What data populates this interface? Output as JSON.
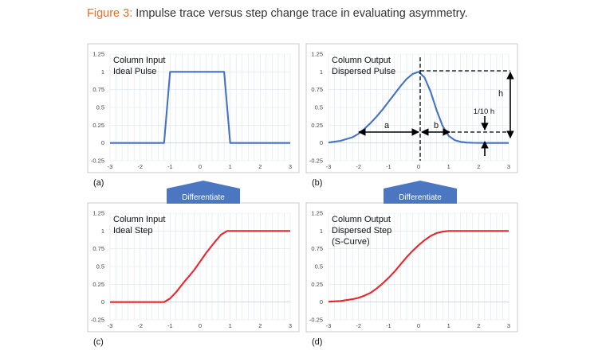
{
  "caption": {
    "figure_label": "Figure 3:",
    "text": "Impulse trace versus step change trace in evaluating asymmetry."
  },
  "colors": {
    "pulse_line": "#4472c4",
    "step_line": "#e8262b",
    "arrow_fill": "#4a76c2",
    "caption_accent": "#e0702e",
    "grid": "#d9e5f2",
    "panel_border": "#bfbfbf"
  },
  "arrows": {
    "left": "Differentiate",
    "right": "Differentiate"
  },
  "annotations": {
    "a": "a",
    "b": "b",
    "h": "h",
    "tenth_h": "1/10 h"
  },
  "chart_data": [
    {
      "type": "line",
      "panel_label": "(a)",
      "title_lines": [
        "Column Input",
        "Ideal Pulse"
      ],
      "xlim": [
        -3,
        3
      ],
      "ylim": [
        -0.25,
        1.25
      ],
      "x_ticks": [
        "-3",
        "-2",
        "-1",
        "0",
        "1",
        "2",
        "3"
      ],
      "y_ticks": [
        "-0.25",
        "0",
        "0.25",
        "0.5",
        "0.75",
        "1",
        "1.25"
      ],
      "grid": true,
      "series": [
        {
          "color": "#4472c4",
          "x": [
            -3,
            -1.2,
            -1.0,
            0.8,
            1.0,
            3
          ],
          "y": [
            0,
            0,
            1,
            1,
            0,
            0
          ]
        }
      ]
    },
    {
      "type": "line",
      "panel_label": "(b)",
      "title_lines": [
        "Column Output",
        "Dispersed Pulse"
      ],
      "xlim": [
        -3,
        3
      ],
      "ylim": [
        -0.25,
        1.25
      ],
      "x_ticks": [
        "-3",
        "-2",
        "-1",
        "0",
        "1",
        "2",
        "3"
      ],
      "y_ticks": [
        "-0.25",
        "0",
        "0.25",
        "0.5",
        "0.75",
        "1",
        "1.25"
      ],
      "grid": true,
      "series": [
        {
          "color": "#4472c4",
          "x": [
            -3,
            -2.6,
            -2.2,
            -2.0,
            -1.8,
            -1.6,
            -1.4,
            -1.2,
            -1.0,
            -0.8,
            -0.6,
            -0.4,
            -0.2,
            0,
            0.2,
            0.4,
            0.6,
            0.8,
            1.0,
            1.2,
            1.4,
            1.6,
            1.8,
            2.2,
            3
          ],
          "y": [
            0.005,
            0.03,
            0.08,
            0.13,
            0.2,
            0.28,
            0.37,
            0.47,
            0.58,
            0.69,
            0.8,
            0.9,
            0.97,
            1.0,
            0.92,
            0.72,
            0.46,
            0.24,
            0.1,
            0.04,
            0.015,
            0.005,
            0.002,
            0.0,
            0.0
          ]
        }
      ]
    },
    {
      "type": "line",
      "panel_label": "(c)",
      "title_lines": [
        "Column Input",
        "Ideal Step"
      ],
      "xlim": [
        -3,
        3
      ],
      "ylim": [
        -0.25,
        1.25
      ],
      "x_ticks": [
        "-3",
        "-2",
        "-1",
        "0",
        "1",
        "2",
        "3"
      ],
      "y_ticks": [
        "-0.25",
        "0",
        "0.25",
        "0.5",
        "0.75",
        "1",
        "1.25"
      ],
      "grid": true,
      "series": [
        {
          "color": "#e8262b",
          "x": [
            -3,
            -1.2,
            -1.0,
            -0.8,
            -0.5,
            -0.2,
            0,
            0.2,
            0.5,
            0.7,
            0.9,
            1.0,
            3
          ],
          "y": [
            0,
            0,
            0.05,
            0.14,
            0.3,
            0.45,
            0.57,
            0.69,
            0.85,
            0.95,
            1.0,
            1.0,
            1.0
          ]
        }
      ]
    },
    {
      "type": "line",
      "panel_label": "(d)",
      "title_lines": [
        "Column Output",
        "Dispersed Step",
        "(S-Curve)"
      ],
      "xlim": [
        -3,
        3
      ],
      "ylim": [
        -0.25,
        1.25
      ],
      "x_ticks": [
        "-3",
        "-2",
        "-1",
        "0",
        "1",
        "2",
        "3"
      ],
      "y_ticks": [
        "-0.25",
        "0",
        "0.25",
        "0.5",
        "0.75",
        "1",
        "1.25"
      ],
      "grid": true,
      "series": [
        {
          "color": "#e8262b",
          "x": [
            -3,
            -2.6,
            -2.2,
            -2.0,
            -1.8,
            -1.6,
            -1.4,
            -1.2,
            -1.0,
            -0.8,
            -0.6,
            -0.4,
            -0.2,
            0,
            0.2,
            0.4,
            0.6,
            0.8,
            1.0,
            1.2,
            1.6,
            2.0,
            3
          ],
          "y": [
            0.005,
            0.015,
            0.04,
            0.06,
            0.09,
            0.13,
            0.19,
            0.26,
            0.34,
            0.43,
            0.53,
            0.63,
            0.72,
            0.8,
            0.87,
            0.93,
            0.97,
            0.99,
            1.0,
            1.0,
            1.0,
            1.0,
            1.0
          ]
        }
      ]
    }
  ]
}
